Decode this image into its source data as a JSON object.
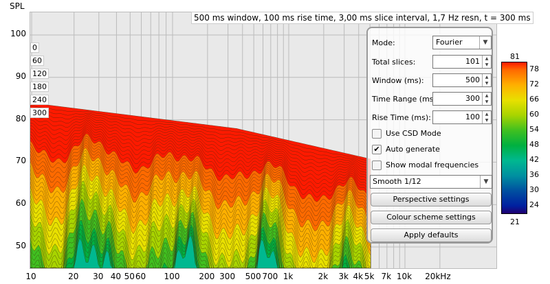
{
  "chart_data": {
    "type": "waterfall",
    "ylabel": "SPL",
    "yticks": [
      "100",
      "90",
      "80",
      "70",
      "60",
      "50"
    ],
    "ylim": [
      45,
      105
    ],
    "xticks": [
      "10",
      "20",
      "30",
      "40",
      "50",
      "60",
      "100",
      "200",
      "300",
      "500",
      "700",
      "1k",
      "2k",
      "3k",
      "4k",
      "5k",
      "7k",
      "10k",
      "20kHz"
    ],
    "xlim": [
      10,
      20000
    ],
    "x_scale": "log",
    "time_labels": [
      "0",
      "60",
      "120",
      "180",
      "240",
      "300"
    ],
    "colorbar": {
      "top": "81",
      "bottom": "21",
      "ticks": [
        "78",
        "72",
        "66",
        "60",
        "54",
        "48",
        "42",
        "36",
        "30",
        "24"
      ],
      "colors": [
        "#ff1a00",
        "#ff6a00",
        "#ffb000",
        "#e8e000",
        "#a8d400",
        "#40c020",
        "#00b040",
        "#00b890",
        "#0090a0",
        "#0050a0",
        "#0020a0",
        "#100080",
        "#200060"
      ]
    },
    "grid": true
  },
  "info": "500 ms window, 100 ms rise time, 3,00 ms slice interval, 1,7 Hz resn, t = 300 ms",
  "panel": {
    "mode_label": "Mode:",
    "mode_value": "Fourier",
    "slices_label": "Total slices:",
    "slices_value": "101",
    "window_label": "Window (ms):",
    "window_value": "500",
    "range_label": "Time Range (ms):",
    "range_value": "300",
    "rise_label": "Rise Time (ms):",
    "rise_value": "100",
    "csd_label": "Use CSD Mode",
    "csd_checked": false,
    "auto_label": "Auto generate",
    "auto_checked": true,
    "modal_label": "Show modal frequencies",
    "modal_checked": false,
    "smooth_value": "Smooth 1/12",
    "perspective_button": "Perspective settings",
    "colour_button": "Colour scheme settings",
    "defaults_button": "Apply defaults"
  }
}
